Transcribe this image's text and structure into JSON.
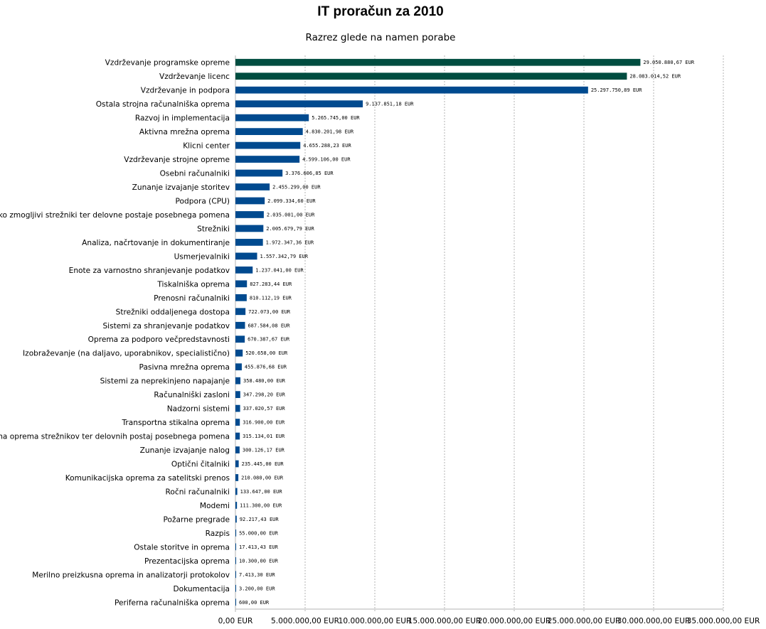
{
  "chart_data": {
    "type": "bar",
    "orientation": "horizontal",
    "title": "IT proračun za 2010",
    "subtitle": "Razrez glede na namen porabe",
    "xlabel": "",
    "ylabel": "",
    "xlim": [
      0,
      35000000
    ],
    "grid": true,
    "legend": "none",
    "x_ticks": [
      0,
      5000000,
      10000000,
      15000000,
      20000000,
      25000000,
      30000000,
      35000000
    ],
    "x_tick_labels": [
      "0,00 EUR",
      "5.000.000,00 EUR",
      "10.000.000,00 EUR",
      "15.000.000,00 EUR",
      "20.000.000,00 EUR",
      "25.000.000,00 EUR",
      "30.000.000,00 EUR",
      "35.000.000,00 EUR"
    ],
    "colors": {
      "highlight": "#004d40",
      "default": "#004a8f"
    },
    "categories": [
      "Vzdrževanje programske opreme",
      "Vzdrževanje licenc",
      "Vzdrževanje in podpora",
      "Ostala strojna računalniška oprema",
      "Razvoj in implementacija",
      "Aktivna mrežna oprema",
      "Klicni center",
      "Vzdrževanje strojne opreme",
      "Osebni računalniki",
      "Zunanje izvajanje storitev",
      "Podpora (CPU)",
      "Visoko zmogljivi strežniki ter delovne postaje posebnega pomena",
      "Strežniki",
      "Analiza, načrtovanje in dokumentiranje",
      "Usmerjevalniki",
      "Enote za varnostno shranjevanje podatkov",
      "Tiskalniška oprema",
      "Prenosni računalniki",
      "Strežniki oddaljenega dostopa",
      "Sistemi za shranjevanje podatkov",
      "Oprema za podporo večpredstavnosti",
      "Izobraževanje (na daljavo, uporabnikov, specialistično)",
      "Pasivna mrežna oprema",
      "Sistemi za neprekinjeno napajanje",
      "Računalniški zasloni",
      "Nadzorni sistemi",
      "Transportna stikalna oprema",
      "Periferna oprema strežnikov ter delovnih postaj posebnega pomena",
      "Zunanje izvajanje nalog",
      "Optični čitalniki",
      "Komunikacijska oprema za satelitski prenos",
      "Ročni računalniki",
      "Modemi",
      "Požarne pregrade",
      "Razpis",
      "Ostale storitve in oprema",
      "Prezentacijska oprema",
      "Merilno preizkusna oprema in analizatorji protokolov",
      "Dokumentacija",
      "Periferna računalniška oprema"
    ],
    "values": [
      29050880.67,
      28083014.52,
      25297750.89,
      9137851.18,
      5265745.0,
      4830201.98,
      4655288.23,
      4599106.0,
      3376606.85,
      2455299.0,
      2099334.6,
      2035001.0,
      2005679.79,
      1972347.36,
      1557342.79,
      1237041.0,
      827283.44,
      810112.19,
      722073.0,
      687584.08,
      670387.67,
      520658.0,
      455876.68,
      358480.0,
      347298.2,
      337020.57,
      316900.0,
      315134.01,
      300126.17,
      235445.0,
      210080.0,
      133647.0,
      111300.0,
      92217.43,
      55000.0,
      17413.43,
      10300.0,
      7413.3,
      3200.0,
      600.0
    ],
    "value_labels": [
      "29.050.880,67 EUR",
      "28.083.014,52 EUR",
      "25.297.750,89 EUR",
      "9.137.851,18 EUR",
      "5.265.745,00 EUR",
      "4.830.201,98 EUR",
      "4.655.288,23 EUR",
      "4.599.106,00 EUR",
      "3.376.606,85 EUR",
      "2.455.299,00 EUR",
      "2.099.334,60 EUR",
      "2.035.001,00 EUR",
      "2.005.679,79 EUR",
      "1.972.347,36 EUR",
      "1.557.342,79 EUR",
      "1.237.041,00 EUR",
      "827.283,44 EUR",
      "810.112,19 EUR",
      "722.073,00 EUR",
      "687.584,08 EUR",
      "670.387,67 EUR",
      "520.658,00 EUR",
      "455.876,68 EUR",
      "358.480,00 EUR",
      "347.298,20 EUR",
      "337.020,57 EUR",
      "316.900,00 EUR",
      "315.134,01 EUR",
      "300.126,17 EUR",
      "235.445,00 EUR",
      "210.080,00 EUR",
      "133.647,00 EUR",
      "111.300,00 EUR",
      "92.217,43 EUR",
      "55.000,00 EUR",
      "17.413,43 EUR",
      "10.300,00 EUR",
      "7.413,30 EUR",
      "3.200,00 EUR",
      "600,00 EUR"
    ],
    "highlighted": [
      0,
      1
    ]
  }
}
